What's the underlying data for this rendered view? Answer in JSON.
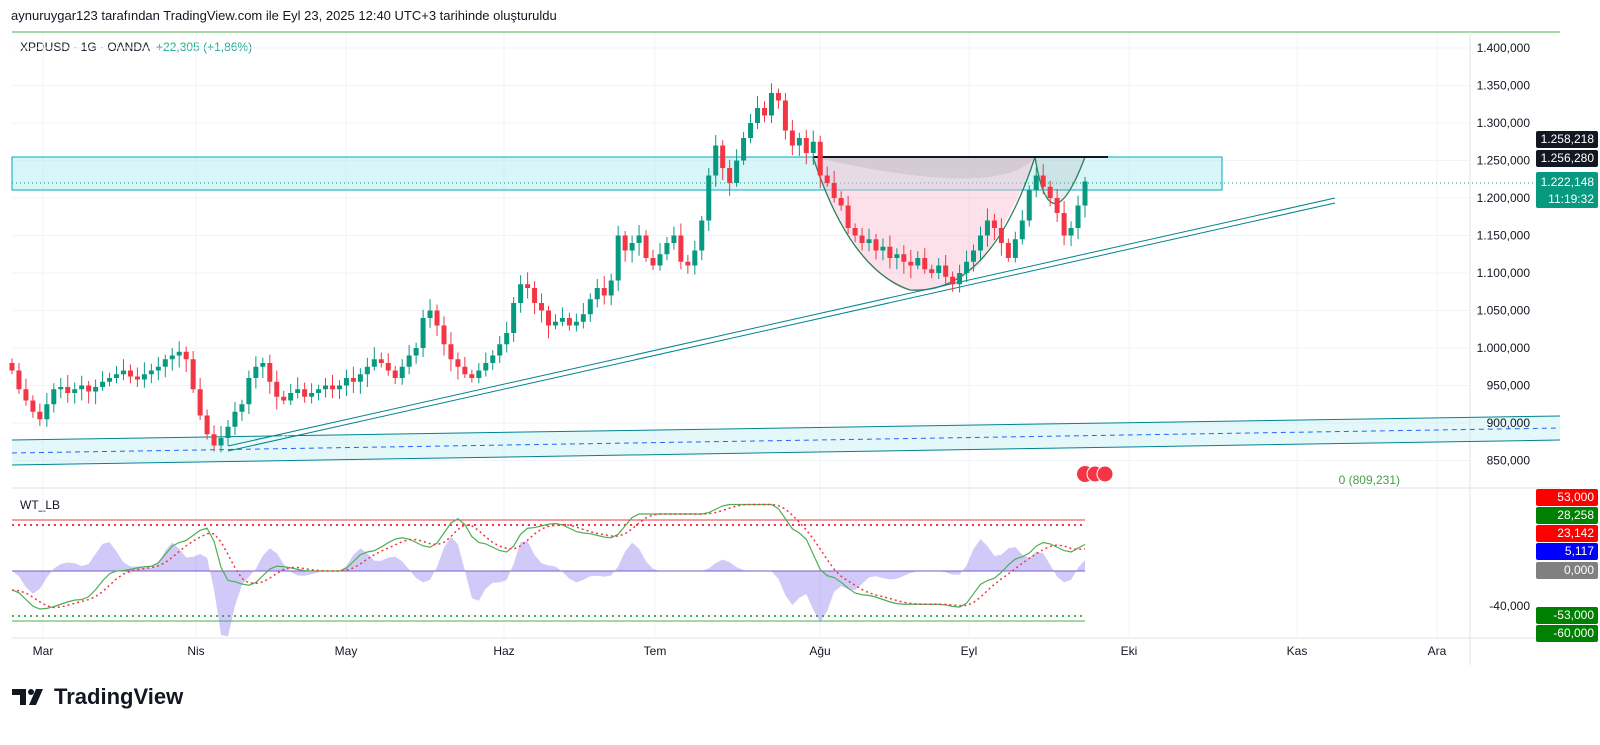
{
  "header": {
    "credit": "aynuruygar123 tarafından TradingView.com ile Eyl 23, 2025 12:40 UTC+3 tarihinde oluşturuldu"
  },
  "symbol": {
    "title": "XPDUSD · 1G · OANDA",
    "change": "+22,305 (+1,86%)"
  },
  "indicator": {
    "name": "WT_LB"
  },
  "logo": {
    "text": "TradingView"
  },
  "colors": {
    "up": "#089981",
    "down": "#f23645",
    "zone": "#b2ebf2",
    "accent": "#22ab94"
  },
  "chart_data": {
    "type": "candlestick",
    "price_ticks": [
      "1.400,000",
      "1.350,000",
      "1.300,000",
      "1.250,000",
      "1.200,000",
      "1.150,000",
      "1.100,000",
      "1.050,000",
      "1.000,000",
      "950,000",
      "900,000",
      "850,000"
    ],
    "price_tick_values": [
      1400000,
      1350000,
      1300000,
      1250000,
      1200000,
      1150000,
      1100000,
      1050000,
      1000000,
      950000,
      900000,
      850000
    ],
    "ylim": [
      850000,
      1400000
    ],
    "x_labels": [
      "Mar",
      "Nis",
      "May",
      "Haz",
      "Tem",
      "Ağu",
      "Eyl",
      "Eki",
      "Kas",
      "Ara"
    ],
    "price_labels": {
      "high_line": "1.258,218",
      "resistance": "1.256,280",
      "last": "1.222,148",
      "countdown": "11:19:32"
    },
    "fib_label": "0 (809,231)",
    "closes_k": [
      970,
      945,
      930,
      915,
      905,
      925,
      945,
      948,
      940,
      945,
      950,
      942,
      948,
      955,
      960,
      965,
      970,
      962,
      958,
      965,
      970,
      975,
      985,
      990,
      995,
      985,
      945,
      910,
      885,
      870,
      880,
      895,
      915,
      925,
      960,
      975,
      980,
      955,
      935,
      930,
      940,
      945,
      935,
      940,
      945,
      950,
      945,
      950,
      960,
      955,
      965,
      975,
      985,
      980,
      970,
      960,
      975,
      990,
      1000,
      1040,
      1050,
      1030,
      1005,
      985,
      975,
      965,
      960,
      970,
      980,
      990,
      1005,
      1020,
      1060,
      1085,
      1080,
      1060,
      1050,
      1030,
      1035,
      1040,
      1030,
      1035,
      1045,
      1065,
      1080,
      1070,
      1090,
      1150,
      1130,
      1140,
      1150,
      1120,
      1110,
      1125,
      1140,
      1150,
      1115,
      1110,
      1130,
      1170,
      1230,
      1270,
      1240,
      1220,
      1250,
      1280,
      1300,
      1320,
      1310,
      1340,
      1330,
      1290,
      1270,
      1280,
      1260,
      1275,
      1230,
      1220,
      1200,
      1190,
      1160,
      1150,
      1140,
      1145,
      1130,
      1135,
      1120,
      1125,
      1115,
      1110,
      1120,
      1105,
      1100,
      1110,
      1095,
      1085,
      1100,
      1115,
      1130,
      1150,
      1170,
      1160,
      1140,
      1120,
      1145,
      1170,
      1210,
      1230,
      1215,
      1200,
      1180,
      1150,
      1160,
      1190,
      1222
    ],
    "zone_k": [
      1210.7,
      1254.7
    ],
    "resistance_k": 1256.28,
    "oscillator": {
      "levels": [
        "53,000",
        "28,258",
        "23,142",
        "5,117",
        "0,000",
        "-40,000",
        "-53,000",
        "-60,000"
      ],
      "level_colors": [
        "#ff0000",
        "#008000",
        "#ff0000",
        "#0000ff",
        "#808080",
        null,
        "#008000",
        "#008000"
      ],
      "wt1_keypoints": [
        [
          0,
          -20
        ],
        [
          4,
          -40
        ],
        [
          10,
          -30
        ],
        [
          15,
          0
        ],
        [
          20,
          5
        ],
        [
          24,
          30
        ],
        [
          28,
          45
        ],
        [
          31,
          -10
        ],
        [
          34,
          -15
        ],
        [
          38,
          5
        ],
        [
          43,
          0
        ],
        [
          47,
          0
        ],
        [
          51,
          20
        ],
        [
          56,
          35
        ],
        [
          60,
          25
        ],
        [
          64,
          55
        ],
        [
          67,
          30
        ],
        [
          71,
          20
        ],
        [
          74,
          45
        ],
        [
          78,
          50
        ],
        [
          82,
          40
        ],
        [
          86,
          35
        ],
        [
          90,
          60
        ],
        [
          94,
          60
        ],
        [
          99,
          60
        ],
        [
          103,
          70
        ],
        [
          109,
          70
        ],
        [
          113,
          40
        ],
        [
          117,
          -5
        ],
        [
          122,
          -25
        ],
        [
          128,
          -35
        ],
        [
          133,
          -35
        ],
        [
          136,
          -38
        ],
        [
          140,
          -10
        ],
        [
          145,
          15
        ],
        [
          148,
          30
        ],
        [
          152,
          20
        ],
        [
          154,
          28
        ]
      ]
    }
  }
}
